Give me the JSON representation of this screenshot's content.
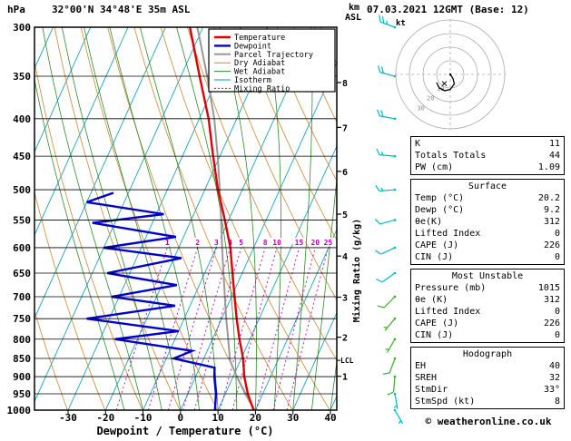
{
  "header": {
    "station": "32°00'N 34°48'E 35m ASL",
    "datetime": "07.03.2021 12GMT (Base: 12)"
  },
  "axes": {
    "pressure_label": "hPa",
    "km_label": "km",
    "asl_label": "ASL",
    "x_label": "Dewpoint / Temperature (°C)",
    "mixing_label": "Mixing Ratio (g/kg)",
    "pressure_ticks": [
      300,
      350,
      400,
      450,
      500,
      550,
      600,
      650,
      700,
      750,
      800,
      850,
      900,
      950,
      1000
    ],
    "temp_ticks": [
      -30,
      -20,
      -10,
      0,
      10,
      20,
      30,
      40
    ],
    "km_ticks": [
      {
        "km": 1,
        "p": 899
      },
      {
        "km": 2,
        "p": 795
      },
      {
        "km": 3,
        "p": 701
      },
      {
        "km": 4,
        "p": 616
      },
      {
        "km": 5,
        "p": 540
      },
      {
        "km": 6,
        "p": 472
      },
      {
        "km": 7,
        "p": 411
      },
      {
        "km": 8,
        "p": 357
      }
    ],
    "lcl": {
      "label": "LCL",
      "p": 855
    }
  },
  "legend": [
    {
      "label": "Temperature",
      "color": "#dd0000",
      "width": 2.4,
      "dash": ""
    },
    {
      "label": "Dewpoint",
      "color": "#0000cc",
      "width": 2.4,
      "dash": ""
    },
    {
      "label": "Parcel Trajectory",
      "color": "#999999",
      "width": 2,
      "dash": ""
    },
    {
      "label": "Dry Adiabat",
      "color": "#cc8833",
      "width": 1,
      "dash": ""
    },
    {
      "label": "Wet Adiabat",
      "color": "#2e8b2e",
      "width": 1,
      "dash": ""
    },
    {
      "label": "Isotherm",
      "color": "#009ab0",
      "width": 1,
      "dash": ""
    },
    {
      "label": "Mixing Ratio",
      "color": "#bb00bb",
      "width": 1,
      "dash": "2,2"
    }
  ],
  "chart_data": {
    "type": "skewt_log_p",
    "pressure_top": 300,
    "pressure_bottom": 1000,
    "temp_min": -30,
    "temp_max": 40,
    "colors": {
      "temperature": "#dd0000",
      "dewpoint": "#0000cc",
      "parcel": "#999999",
      "dry_adiabat": "#cc8833",
      "wet_adiabat": "#2e8b2e",
      "isotherm": "#009ab0",
      "mixing_ratio": "#bb00bb",
      "grid": "#000000"
    },
    "isotherms": {
      "start": -100,
      "end": 40,
      "step": 10
    },
    "dry_adiabats_K": {
      "start": 243,
      "end": 423,
      "step": 10
    },
    "wet_adiabats_C": {
      "start": -15,
      "end": 40,
      "step": 5
    },
    "mixing_ratio_lines": [
      1,
      2,
      3,
      4,
      5,
      8,
      10,
      15,
      20,
      25
    ],
    "mixing_label_pressure": 600,
    "series": {
      "temperature": [
        [
          1000,
          19.5
        ],
        [
          950,
          16
        ],
        [
          900,
          13
        ],
        [
          850,
          10.5
        ],
        [
          800,
          7.2
        ],
        [
          750,
          4
        ],
        [
          700,
          0.8
        ],
        [
          650,
          -2.6
        ],
        [
          600,
          -6.2
        ],
        [
          550,
          -11
        ],
        [
          500,
          -16.5
        ],
        [
          450,
          -21.8
        ],
        [
          400,
          -27.5
        ],
        [
          350,
          -35
        ],
        [
          300,
          -43.5
        ]
      ],
      "dewpoint": [
        [
          1000,
          9.2
        ],
        [
          950,
          7.5
        ],
        [
          900,
          5
        ],
        [
          875,
          4
        ],
        [
          850,
          -8
        ],
        [
          830,
          -4
        ],
        [
          800,
          -26
        ],
        [
          780,
          -10
        ],
        [
          750,
          -36
        ],
        [
          720,
          -14
        ],
        [
          700,
          -32
        ],
        [
          675,
          -16
        ],
        [
          650,
          -36
        ],
        [
          620,
          -18
        ],
        [
          600,
          -40
        ],
        [
          580,
          -22
        ],
        [
          555,
          -46
        ],
        [
          540,
          -28
        ],
        [
          520,
          -50
        ],
        [
          505,
          -44
        ]
      ],
      "parcel": [
        [
          1000,
          19.8
        ],
        [
          950,
          15.3
        ],
        [
          900,
          11
        ],
        [
          855,
          7.2
        ],
        [
          800,
          4.2
        ],
        [
          750,
          1.2
        ],
        [
          700,
          -1.8
        ],
        [
          650,
          -5
        ],
        [
          600,
          -8.4
        ],
        [
          550,
          -12
        ],
        [
          500,
          -16
        ],
        [
          450,
          -20.6
        ],
        [
          400,
          -26
        ],
        [
          350,
          -33
        ],
        [
          300,
          -41.5
        ]
      ]
    },
    "wind_barbs": [
      {
        "p": 300,
        "spd": 25,
        "dir": 290,
        "color": "#00b8c8"
      },
      {
        "p": 350,
        "spd": 20,
        "dir": 285,
        "color": "#00b8c8"
      },
      {
        "p": 400,
        "spd": 20,
        "dir": 280,
        "color": "#00b8c8"
      },
      {
        "p": 450,
        "spd": 15,
        "dir": 275,
        "color": "#00b8c8"
      },
      {
        "p": 500,
        "spd": 15,
        "dir": 265,
        "color": "#00b8c8"
      },
      {
        "p": 550,
        "spd": 10,
        "dir": 255,
        "color": "#00b8c8"
      },
      {
        "p": 600,
        "spd": 10,
        "dir": 245,
        "color": "#00b8c8"
      },
      {
        "p": 650,
        "spd": 10,
        "dir": 235,
        "color": "#00b8c8"
      },
      {
        "p": 700,
        "spd": 10,
        "dir": 225,
        "color": "#3fae2a"
      },
      {
        "p": 750,
        "spd": 5,
        "dir": 220,
        "color": "#3fae2a"
      },
      {
        "p": 800,
        "spd": 5,
        "dir": 210,
        "color": "#3fae2a"
      },
      {
        "p": 850,
        "spd": 10,
        "dir": 200,
        "color": "#3fae2a"
      },
      {
        "p": 900,
        "spd": 10,
        "dir": 185,
        "color": "#3fae2a"
      },
      {
        "p": 950,
        "spd": 5,
        "dir": 170,
        "color": "#00b8c8"
      },
      {
        "p": 1000,
        "spd": 5,
        "dir": 150,
        "color": "#00b8c8"
      }
    ],
    "hodograph": {
      "unit": "kt",
      "rings": [
        10,
        20,
        30,
        40
      ],
      "trace": [
        [
          0,
          0
        ],
        [
          2,
          -3
        ],
        [
          3,
          -7
        ],
        [
          0,
          -11
        ],
        [
          -4,
          -12
        ],
        [
          -8,
          -10
        ],
        [
          -10,
          -6
        ]
      ],
      "storm": {
        "dir_deg": 33,
        "spd_kt": 8
      }
    }
  },
  "panel": {
    "boxes": [
      {
        "title": "",
        "rows": [
          [
            "K",
            "11"
          ],
          [
            "Totals Totals",
            "44"
          ],
          [
            "PW (cm)",
            "1.09"
          ]
        ]
      },
      {
        "title": "Surface",
        "rows": [
          [
            "Temp (°C)",
            "20.2"
          ],
          [
            "Dewp (°C)",
            "9.2"
          ],
          [
            "θe(K)",
            "312"
          ],
          [
            "Lifted Index",
            "0"
          ],
          [
            "CAPE (J)",
            "226"
          ],
          [
            "CIN (J)",
            "0"
          ]
        ]
      },
      {
        "title": "Most Unstable",
        "rows": [
          [
            "Pressure (mb)",
            "1015"
          ],
          [
            "θe (K)",
            "312"
          ],
          [
            "Lifted Index",
            "0"
          ],
          [
            "CAPE (J)",
            "226"
          ],
          [
            "CIN (J)",
            "0"
          ]
        ]
      },
      {
        "title": "Hodograph",
        "rows": [
          [
            "EH",
            "40"
          ],
          [
            "SREH",
            "32"
          ],
          [
            "StmDir",
            "33°"
          ],
          [
            "StmSpd (kt)",
            "8"
          ]
        ]
      }
    ]
  },
  "footer": {
    "copyright": "© weatheronline.co.uk"
  }
}
